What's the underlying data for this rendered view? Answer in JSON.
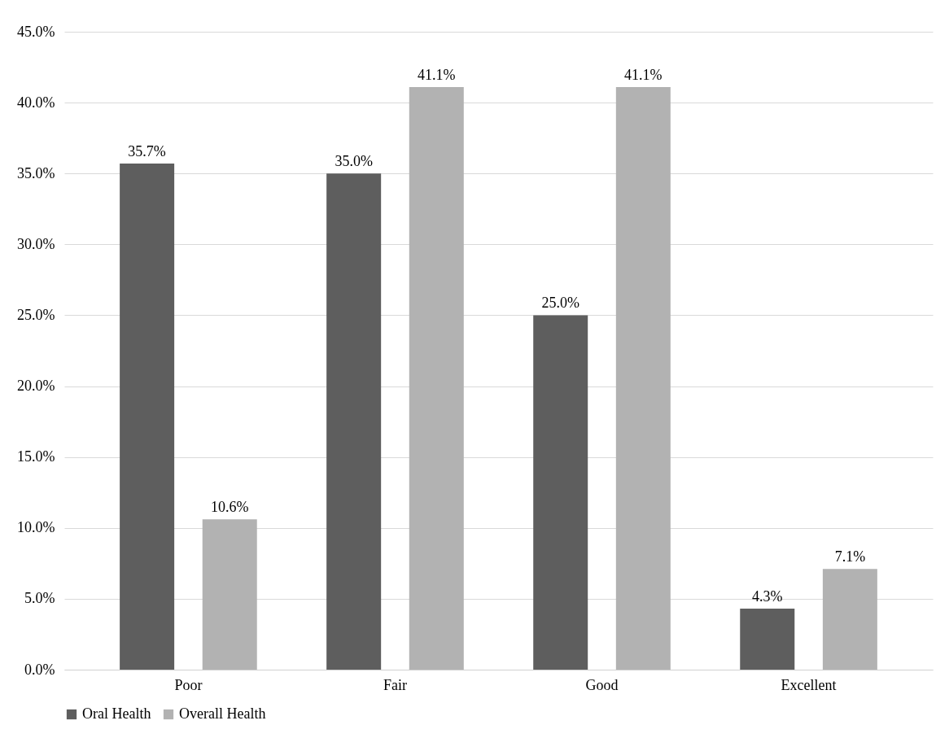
{
  "chart_data": {
    "type": "bar",
    "categories": [
      "Poor",
      "Fair",
      "Good",
      "Excellent"
    ],
    "series": [
      {
        "name": "Oral Health",
        "color": "#5e5e5e",
        "values": [
          35.7,
          35.0,
          25.0,
          4.3
        ],
        "value_labels": [
          "35.7%",
          "35.0%",
          "25.0%",
          "4.3%"
        ]
      },
      {
        "name": "Overall Health",
        "color": "#b2b2b2",
        "values": [
          10.6,
          41.1,
          41.1,
          7.1
        ],
        "value_labels": [
          "10.6%",
          "41.1%",
          "41.1%",
          "7.1%"
        ]
      }
    ],
    "ylim": [
      0,
      45
    ],
    "yticks": [
      {
        "value": 0,
        "label": "0.0%"
      },
      {
        "value": 5,
        "label": "5.0%"
      },
      {
        "value": 10,
        "label": "10.0%"
      },
      {
        "value": 15,
        "label": "15.0%"
      },
      {
        "value": 20,
        "label": "20.0%"
      },
      {
        "value": 25,
        "label": "25.0%"
      },
      {
        "value": 30,
        "label": "30.0%"
      },
      {
        "value": 35,
        "label": "35.0%"
      },
      {
        "value": 40,
        "label": "40.0%"
      },
      {
        "value": 45,
        "label": "45.0%"
      }
    ],
    "grid": "y",
    "legend": "bottom"
  }
}
